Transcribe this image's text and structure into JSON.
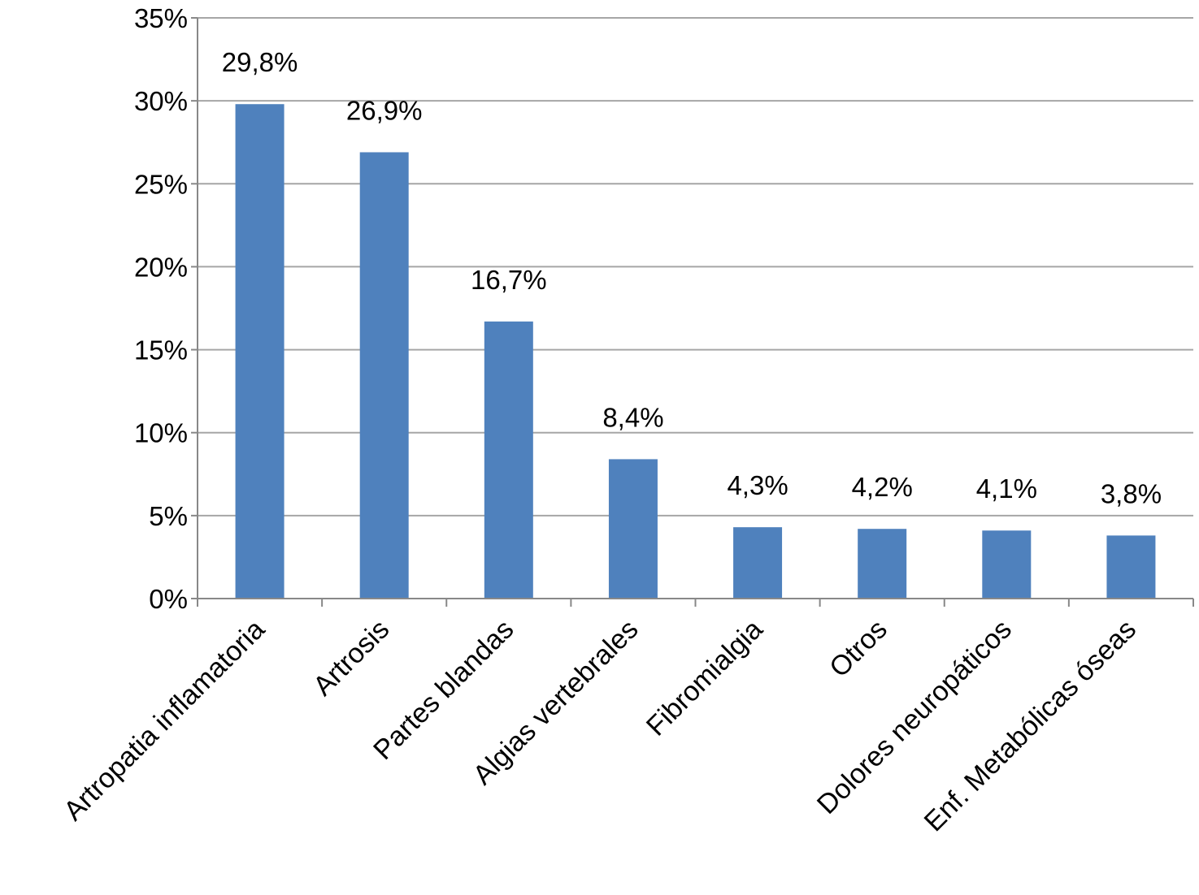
{
  "chart_data": {
    "type": "bar",
    "title": "",
    "xlabel": "",
    "ylabel": "",
    "categories": [
      "Artropatia inflamatoria",
      "Artrosis",
      "Partes blandas",
      "Algias vertebrales",
      "Fibromialgia",
      "Otros",
      "Dolores neuropáticos",
      "Enf. Metabólicas óseas"
    ],
    "values": [
      29.8,
      26.9,
      16.7,
      8.4,
      4.3,
      4.2,
      4.1,
      3.8
    ],
    "data_labels": [
      "29,8%",
      "26,9%",
      "16,7%",
      "8,4%",
      "4,3%",
      "4,2%",
      "4,1%",
      "3,8%"
    ],
    "ylim": [
      0,
      35
    ],
    "yticks": [
      0,
      5,
      10,
      15,
      20,
      25,
      30,
      35
    ],
    "ytick_labels": [
      "0%",
      "5%",
      "10%",
      "15%",
      "20%",
      "25%",
      "30%",
      "35%"
    ],
    "grid": true,
    "legend": "none",
    "bar_color": "#4f81bd",
    "grid_color": "#a6a6a6"
  }
}
